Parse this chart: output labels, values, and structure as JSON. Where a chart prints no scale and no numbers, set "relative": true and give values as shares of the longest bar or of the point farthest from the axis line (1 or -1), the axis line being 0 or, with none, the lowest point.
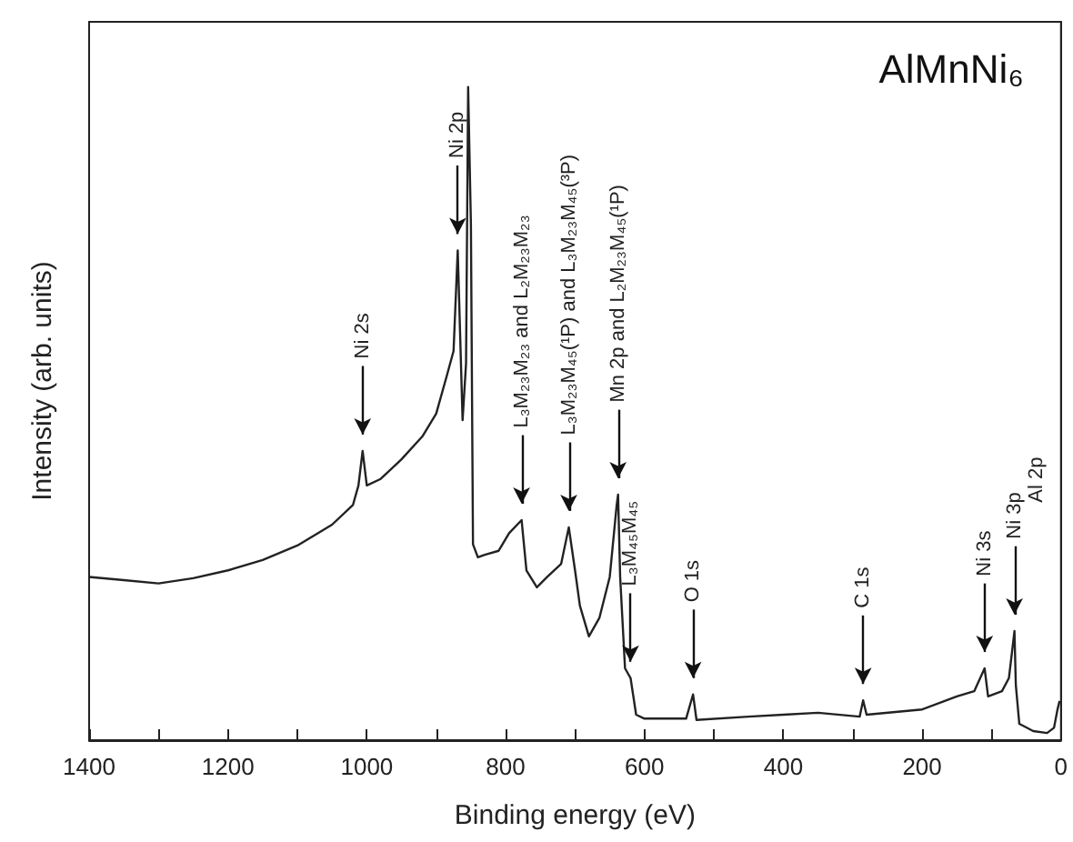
{
  "chart_data": {
    "type": "line",
    "title": "AlMnNi₆",
    "xlabel": "Binding energy (eV)",
    "ylabel": "Intensity (arb. units)",
    "relative": true,
    "color": "#222222",
    "marker": "none",
    "grid": false,
    "xlim": [
      1400,
      0
    ],
    "xticks": [
      1400,
      {
        "value": 1300,
        "label": null
      },
      1200,
      {
        "value": 1100,
        "label": null
      },
      1000,
      {
        "value": 900,
        "label": null
      },
      800,
      {
        "value": 700,
        "label": null
      },
      600,
      {
        "value": 500,
        "label": null
      },
      400,
      {
        "value": 300,
        "label": null
      },
      200,
      {
        "value": 100,
        "label": null
      },
      0
    ],
    "x": [
      1400,
      1350,
      1300,
      1250,
      1200,
      1150,
      1100,
      1050,
      1020,
      1012,
      1006,
      1000,
      980,
      950,
      920,
      900,
      885,
      875,
      869,
      862,
      857,
      854,
      850,
      847,
      840,
      830,
      810,
      795,
      777,
      770,
      755,
      740,
      720,
      709,
      700,
      693,
      680,
      665,
      650,
      640,
      638,
      635,
      628,
      620,
      612,
      600,
      540,
      530,
      525,
      450,
      400,
      350,
      290,
      285,
      280,
      200,
      150,
      125,
      110,
      105,
      85,
      75,
      67,
      65,
      60,
      40,
      20,
      10,
      5,
      2
    ],
    "values": [
      0.25,
      0.245,
      0.24,
      0.248,
      0.26,
      0.276,
      0.298,
      0.33,
      0.36,
      0.39,
      0.443,
      0.39,
      0.4,
      0.43,
      0.465,
      0.5,
      0.557,
      0.596,
      0.75,
      0.49,
      0.577,
      1.0,
      0.79,
      0.3,
      0.28,
      0.284,
      0.29,
      0.317,
      0.337,
      0.26,
      0.234,
      0.25,
      0.27,
      0.326,
      0.26,
      0.206,
      0.159,
      0.187,
      0.25,
      0.36,
      0.376,
      0.25,
      0.11,
      0.095,
      0.039,
      0.033,
      0.033,
      0.07,
      0.031,
      0.036,
      0.039,
      0.042,
      0.036,
      0.061,
      0.039,
      0.047,
      0.067,
      0.075,
      0.11,
      0.067,
      0.075,
      0.095,
      0.167,
      0.084,
      0.025,
      0.014,
      0.011,
      0.019,
      0.047,
      0.06
    ],
    "annotations": [
      {
        "text": "Ni 2s",
        "x": 1006,
        "y": 0.443
      },
      {
        "text": "Ni 2p",
        "x": 869,
        "y": 0.75
      },
      {
        "text": "L₃M₂₃M₂₃ and L₂M₂₃M₂₃",
        "x": 777,
        "y": 0.337
      },
      {
        "text": "L₃M₂₃M₄₅(¹P) and L₃M₂₃M₄₅(³P)",
        "x": 709,
        "y": 0.326
      },
      {
        "text": "Mn 2p and L₂M₂₃M₄₅(¹P)",
        "x": 638,
        "y": 0.376
      },
      {
        "text": "L₃M₄₅M₄₅",
        "x": 620,
        "y": 0.095
      },
      {
        "text": "O 1s",
        "x": 530,
        "y": 0.07
      },
      {
        "text": "C 1s",
        "x": 285,
        "y": 0.061
      },
      {
        "text": "Ni 3s",
        "x": 110,
        "y": 0.11
      },
      {
        "text": "Ni 3p",
        "x": 67,
        "y": 0.167
      },
      "Al 2p"
    ]
  }
}
